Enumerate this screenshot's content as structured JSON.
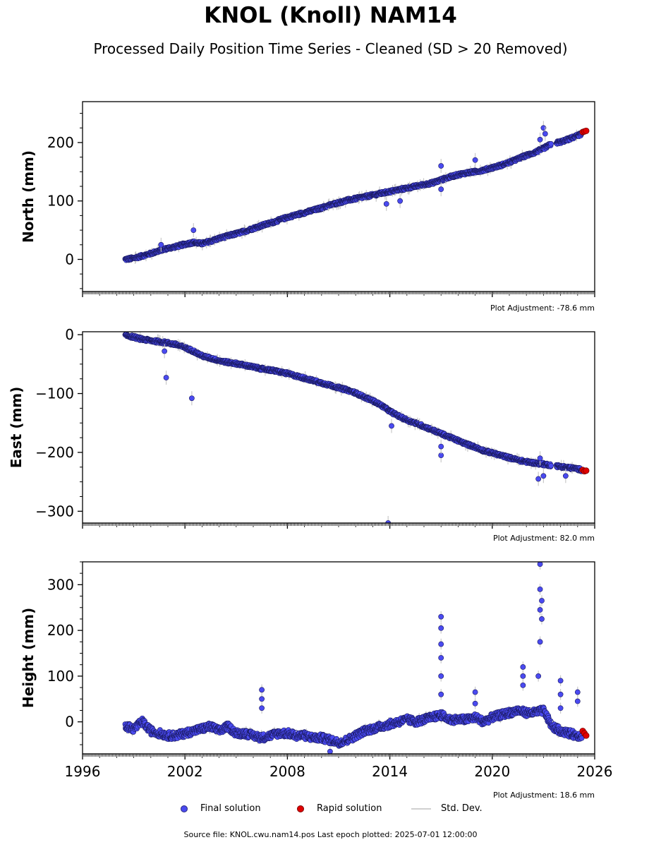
{
  "title": "KNOL (Knoll) NAM14",
  "subtitle": "Processed Daily Position Time Series - Cleaned (SD > 20 Removed)",
  "legend": {
    "final": "Final solution",
    "rapid": "Rapid solution",
    "std": "Std. Dev."
  },
  "source": "Source file: KNOL.cwu.nam14.pos  Last epoch plotted: 2025-07-01 12:00:00",
  "colors": {
    "final": "#4a4af0",
    "final_edge": "#1a1a60",
    "rapid": "#e00000",
    "std": "#c8c8c8"
  },
  "chart_data": [
    {
      "type": "scatter",
      "ylabel": "North (mm)",
      "adjustment": "Plot Adjustment: -78.6 mm",
      "xlim": [
        1996,
        2026
      ],
      "ylim": [
        -55,
        270
      ],
      "yticks": [
        0,
        100,
        200
      ],
      "xticks": [],
      "final_series": [
        [
          1998.5,
          0
        ],
        [
          1999.0,
          2
        ],
        [
          1999.5,
          6
        ],
        [
          2000.0,
          10
        ],
        [
          2000.5,
          15
        ],
        [
          2001.0,
          19
        ],
        [
          2001.5,
          22
        ],
        [
          2002.0,
          26
        ],
        [
          2002.5,
          29
        ],
        [
          2003.0,
          27
        ],
        [
          2003.5,
          31
        ],
        [
          2004.0,
          36
        ],
        [
          2004.5,
          40
        ],
        [
          2005.0,
          44
        ],
        [
          2005.5,
          48
        ],
        [
          2006.0,
          53
        ],
        [
          2006.5,
          58
        ],
        [
          2007.0,
          62
        ],
        [
          2007.5,
          67
        ],
        [
          2008.0,
          72
        ],
        [
          2008.5,
          76
        ],
        [
          2009.0,
          80
        ],
        [
          2009.5,
          84
        ],
        [
          2010.0,
          88
        ],
        [
          2010.5,
          93
        ],
        [
          2011.0,
          97
        ],
        [
          2011.5,
          101
        ],
        [
          2012.0,
          104
        ],
        [
          2012.5,
          107
        ],
        [
          2013.0,
          110
        ],
        [
          2013.5,
          113
        ],
        [
          2014.0,
          116
        ],
        [
          2014.5,
          119
        ],
        [
          2015.0,
          122
        ],
        [
          2015.5,
          125
        ],
        [
          2016.0,
          128
        ],
        [
          2016.5,
          131
        ],
        [
          2017.0,
          136
        ],
        [
          2017.5,
          141
        ],
        [
          2018.0,
          145
        ],
        [
          2018.5,
          148
        ],
        [
          2019.0,
          150
        ],
        [
          2019.5,
          153
        ],
        [
          2020.0,
          157
        ],
        [
          2020.5,
          161
        ],
        [
          2021.0,
          166
        ],
        [
          2021.5,
          172
        ],
        [
          2022.0,
          178
        ],
        [
          2022.5,
          183
        ],
        [
          2023.0,
          190
        ],
        [
          2023.5,
          198
        ],
        [
          2024.0,
          201
        ],
        [
          2024.5,
          206
        ],
        [
          2025.0,
          212
        ],
        [
          2025.4,
          217
        ]
      ],
      "outliers": [
        [
          2000.6,
          25
        ],
        [
          2002.5,
          50
        ],
        [
          2013.8,
          95
        ],
        [
          2014.6,
          100
        ],
        [
          2017.0,
          160
        ],
        [
          2017.0,
          120
        ],
        [
          2019.0,
          170
        ],
        [
          2022.8,
          205
        ],
        [
          2023.0,
          225
        ],
        [
          2023.1,
          215
        ]
      ],
      "rapid_series": [
        [
          2025.3,
          218
        ],
        [
          2025.4,
          219
        ],
        [
          2025.5,
          220
        ]
      ]
    },
    {
      "type": "scatter",
      "ylabel": "East (mm)",
      "adjustment": "Plot Adjustment: 82.0 mm",
      "xlim": [
        1996,
        2026
      ],
      "ylim": [
        -320,
        5
      ],
      "yticks": [
        0,
        -100,
        -200,
        -300
      ],
      "xticks": [],
      "final_series": [
        [
          1998.5,
          -1
        ],
        [
          1999.0,
          -4
        ],
        [
          1999.5,
          -8
        ],
        [
          2000.0,
          -10
        ],
        [
          2000.5,
          -12
        ],
        [
          2001.0,
          -14
        ],
        [
          2001.5,
          -17
        ],
        [
          2002.0,
          -22
        ],
        [
          2002.5,
          -28
        ],
        [
          2003.0,
          -36
        ],
        [
          2003.5,
          -40
        ],
        [
          2004.0,
          -44
        ],
        [
          2004.5,
          -47
        ],
        [
          2005.0,
          -49
        ],
        [
          2005.5,
          -52
        ],
        [
          2006.0,
          -55
        ],
        [
          2006.5,
          -58
        ],
        [
          2007.0,
          -60
        ],
        [
          2007.5,
          -63
        ],
        [
          2008.0,
          -66
        ],
        [
          2008.5,
          -70
        ],
        [
          2009.0,
          -74
        ],
        [
          2009.5,
          -78
        ],
        [
          2010.0,
          -82
        ],
        [
          2010.5,
          -86
        ],
        [
          2011.0,
          -90
        ],
        [
          2011.5,
          -94
        ],
        [
          2012.0,
          -99
        ],
        [
          2012.5,
          -106
        ],
        [
          2013.0,
          -112
        ],
        [
          2013.5,
          -120
        ],
        [
          2014.0,
          -130
        ],
        [
          2014.5,
          -138
        ],
        [
          2015.0,
          -145
        ],
        [
          2015.5,
          -150
        ],
        [
          2016.0,
          -156
        ],
        [
          2016.5,
          -162
        ],
        [
          2017.0,
          -168
        ],
        [
          2017.5,
          -174
        ],
        [
          2018.0,
          -180
        ],
        [
          2018.5,
          -186
        ],
        [
          2019.0,
          -191
        ],
        [
          2019.5,
          -197
        ],
        [
          2020.0,
          -201
        ],
        [
          2020.5,
          -205
        ],
        [
          2021.0,
          -209
        ],
        [
          2021.5,
          -213
        ],
        [
          2022.0,
          -216
        ],
        [
          2022.5,
          -218
        ],
        [
          2023.0,
          -220
        ],
        [
          2024.0,
          -224
        ],
        [
          2024.5,
          -226
        ],
        [
          2025.0,
          -228
        ],
        [
          2025.4,
          -231
        ]
      ],
      "outliers": [
        [
          2000.8,
          -28
        ],
        [
          2000.9,
          -73
        ],
        [
          2002.4,
          -108
        ],
        [
          2013.9,
          -320
        ],
        [
          2014.1,
          -155
        ],
        [
          2017.0,
          -205
        ],
        [
          2017.0,
          -190
        ],
        [
          2022.7,
          -245
        ],
        [
          2023.0,
          -240
        ],
        [
          2022.8,
          -210
        ],
        [
          2024.3,
          -240
        ]
      ],
      "rapid_series": [
        [
          2025.3,
          -230
        ],
        [
          2025.4,
          -232
        ],
        [
          2025.5,
          -231
        ]
      ]
    },
    {
      "type": "scatter",
      "ylabel": "Height (mm)",
      "adjustment": "Plot Adjustment: 18.6 mm",
      "xlim": [
        1996,
        2026
      ],
      "ylim": [
        -70,
        350
      ],
      "yticks": [
        0,
        100,
        200,
        300
      ],
      "xticks": [
        "1996",
        "2002",
        "2008",
        "2014",
        "2020",
        "2026"
      ],
      "final_series": [
        [
          1998.5,
          -10
        ],
        [
          1999.0,
          -15
        ],
        [
          1999.5,
          0
        ],
        [
          2000.0,
          -20
        ],
        [
          2000.5,
          -25
        ],
        [
          2001.0,
          -30
        ],
        [
          2001.5,
          -30
        ],
        [
          2002.0,
          -25
        ],
        [
          2002.5,
          -20
        ],
        [
          2003.0,
          -15
        ],
        [
          2003.5,
          -10
        ],
        [
          2004.0,
          -20
        ],
        [
          2004.5,
          -10
        ],
        [
          2005.0,
          -25
        ],
        [
          2005.5,
          -25
        ],
        [
          2006.0,
          -30
        ],
        [
          2006.5,
          -35
        ],
        [
          2007.0,
          -30
        ],
        [
          2007.5,
          -25
        ],
        [
          2008.0,
          -25
        ],
        [
          2008.5,
          -30
        ],
        [
          2009.0,
          -30
        ],
        [
          2009.5,
          -35
        ],
        [
          2010.0,
          -35
        ],
        [
          2010.5,
          -40
        ],
        [
          2011.0,
          -45
        ],
        [
          2011.5,
          -40
        ],
        [
          2012.0,
          -30
        ],
        [
          2012.5,
          -20
        ],
        [
          2013.0,
          -15
        ],
        [
          2013.5,
          -10
        ],
        [
          2014.0,
          -5
        ],
        [
          2014.5,
          0
        ],
        [
          2015.0,
          5
        ],
        [
          2015.5,
          0
        ],
        [
          2016.0,
          5
        ],
        [
          2016.5,
          10
        ],
        [
          2017.0,
          15
        ],
        [
          2017.5,
          5
        ],
        [
          2018.0,
          5
        ],
        [
          2018.5,
          5
        ],
        [
          2019.0,
          10
        ],
        [
          2019.5,
          0
        ],
        [
          2020.0,
          10
        ],
        [
          2020.5,
          15
        ],
        [
          2021.0,
          20
        ],
        [
          2021.5,
          25
        ],
        [
          2022.0,
          20
        ],
        [
          2022.5,
          20
        ],
        [
          2023.0,
          25
        ],
        [
          2023.5,
          -10
        ],
        [
          2024.0,
          -20
        ],
        [
          2024.5,
          -25
        ],
        [
          2025.0,
          -30
        ],
        [
          2025.4,
          -30
        ]
      ],
      "outliers": [
        [
          2006.5,
          70
        ],
        [
          2006.5,
          50
        ],
        [
          2006.5,
          30
        ],
        [
          2017.0,
          230
        ],
        [
          2017.0,
          205
        ],
        [
          2017.0,
          170
        ],
        [
          2017.0,
          140
        ],
        [
          2017.0,
          100
        ],
        [
          2017.0,
          60
        ],
        [
          2019.0,
          65
        ],
        [
          2019.0,
          40
        ],
        [
          2021.8,
          120
        ],
        [
          2021.8,
          100
        ],
        [
          2021.8,
          80
        ],
        [
          2022.8,
          345
        ],
        [
          2022.8,
          290
        ],
        [
          2022.9,
          265
        ],
        [
          2022.8,
          245
        ],
        [
          2022.9,
          225
        ],
        [
          2022.8,
          175
        ],
        [
          2022.7,
          100
        ],
        [
          2024.0,
          90
        ],
        [
          2024.0,
          60
        ],
        [
          2024.0,
          30
        ],
        [
          2025.0,
          65
        ],
        [
          2025.0,
          45
        ],
        [
          2010.5,
          -65
        ]
      ],
      "rapid_series": [
        [
          2025.3,
          -20
        ],
        [
          2025.4,
          -25
        ],
        [
          2025.5,
          -30
        ]
      ]
    }
  ]
}
